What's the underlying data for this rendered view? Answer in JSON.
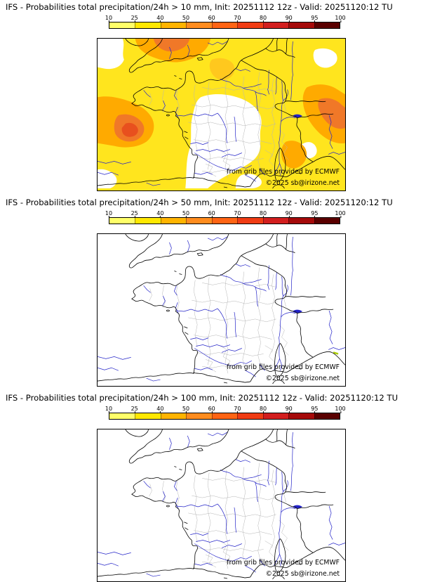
{
  "colorbar": {
    "ticks": [
      "10",
      "25",
      "40",
      "50",
      "60",
      "70",
      "80",
      "90",
      "95",
      "100"
    ],
    "colors": [
      "#FFFF69",
      "#FFE800",
      "#FFB400",
      "#FF8C1E",
      "#FF6414",
      "#F03C14",
      "#D21E1E",
      "#A50A0A",
      "#5A0000"
    ]
  },
  "panels": [
    {
      "title": "IFS - Probabilities total precipitation/24h > 10 mm, Init: 20251112 12z - Valid: 20251120:12 TU",
      "credit": "from grib files provided by ECMWF",
      "copyright": "©2025 sb@irizone.net"
    },
    {
      "title": "IFS - Probabilities total precipitation/24h > 50 mm, Init: 20251112 12z - Valid: 20251120:12 TU",
      "credit": "from grib files provided by ECMWF",
      "copyright": "©2025 sb@irizone.net"
    },
    {
      "title": "IFS - Probabilities total precipitation/24h > 100 mm, Init: 20251112 12z - Valid: 20251120:12 TU",
      "credit": "from grib files provided by ECMWF",
      "copyright": "©2025 sb@irizone.net"
    }
  ],
  "map_colors": {
    "coast": "#000000",
    "admin": "#B4B4B4",
    "river": "#2323C8",
    "prob_low": "#FFE51E",
    "prob_light": "#FFC81E",
    "prob_mid": "#FFAA00",
    "prob_high": "#F07828",
    "prob_intense": "#E8501E"
  }
}
